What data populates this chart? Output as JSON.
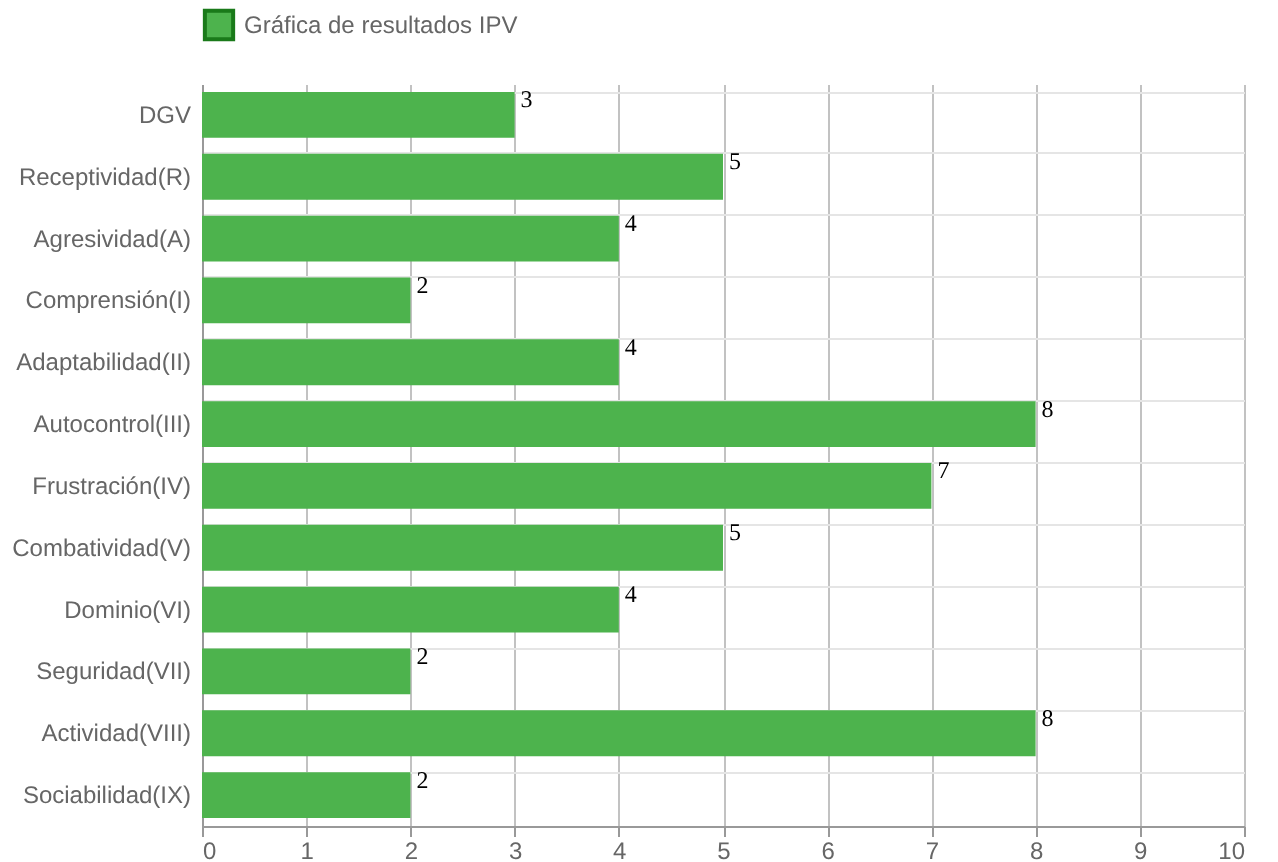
{
  "chart_data": {
    "type": "bar",
    "orientation": "horizontal",
    "categories": [
      "DGV",
      "Receptividad(R)",
      "Agresividad(A)",
      "Comprensión(I)",
      "Adaptabilidad(II)",
      "Autocontrol(III)",
      "Frustración(IV)",
      "Combatividad(V)",
      "Dominio(VI)",
      "Seguridad(VII)",
      "Actividad(VIII)",
      "Sociabilidad(IX)"
    ],
    "series": [
      {
        "name": "Gráfica de resultados IPV",
        "color": "#4db34d",
        "values": [
          3,
          5,
          4,
          2,
          4,
          8,
          7,
          5,
          4,
          2,
          8,
          2
        ]
      }
    ],
    "xlim": [
      0,
      10
    ],
    "xticks": [
      0,
      1,
      2,
      3,
      4,
      5,
      6,
      7,
      8,
      9,
      10
    ],
    "grid": true,
    "legend": "top",
    "data_labels": true
  }
}
